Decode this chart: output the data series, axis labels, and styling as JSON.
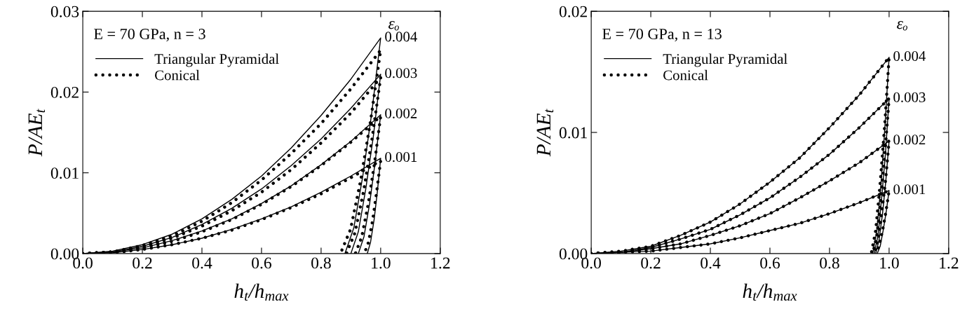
{
  "chart_data": [
    {
      "type": "line",
      "xlabel": "h$_{t}$/h$_{max}$",
      "ylabel": "P/AE$_{t}$",
      "xlim": [
        0,
        1.2
      ],
      "xticks": [
        {
          "value": 0,
          "label": "0.0"
        },
        {
          "value": 0.2,
          "label": "0.2"
        },
        {
          "value": 0.4,
          "label": "0.4"
        },
        {
          "value": 0.6,
          "label": "0.6"
        },
        {
          "value": 0.8,
          "label": "0.8"
        },
        {
          "value": 1.0,
          "label": "1.0"
        },
        {
          "value": 1.2,
          "label": "1.2"
        }
      ],
      "ylim": [
        0,
        0.03
      ],
      "yticks": [
        {
          "value": 0,
          "label": "0.00"
        },
        {
          "value": 0.01,
          "label": "0.01"
        },
        {
          "value": 0.02,
          "label": "0.02"
        },
        {
          "value": 0.03,
          "label": "0.03"
        }
      ],
      "grid": false,
      "legend": "top left",
      "marker": "none",
      "annotations": [
        "E = 70 GPa, n = 3",
        "εₒ",
        "0.004",
        "0.003",
        "0.002",
        "0.001"
      ],
      "series": [
        {
          "name": "Triangular Pyramidal",
          "color": "#000000",
          "line_style": "solid",
          "x": [
            0,
            0.1,
            0.2,
            0.3,
            0.4,
            0.5,
            0.6,
            0.7,
            0.8,
            0.9,
            1.0,
            0.97,
            0.94,
            0.91,
            0.88
          ],
          "values": [
            0,
            0.0003,
            0.0011,
            0.0024,
            0.0043,
            0.0067,
            0.0096,
            0.0131,
            0.0171,
            0.0216,
            0.0267,
            0.0174,
            0.0096,
            0.0032,
            0
          ]
        },
        {
          "color": "#000000",
          "line_style": "solid",
          "x": [
            0,
            0.1,
            0.2,
            0.3,
            0.4,
            0.5,
            0.6,
            0.7,
            0.8,
            0.9,
            1.0,
            0.975,
            0.95,
            0.925,
            0.9
          ],
          "values": [
            0,
            0.0002,
            0.0009,
            0.002,
            0.0036,
            0.0056,
            0.008,
            0.0109,
            0.0142,
            0.018,
            0.0222,
            0.0144,
            0.008,
            0.0027,
            0
          ]
        },
        {
          "color": "#000000",
          "line_style": "solid",
          "x": [
            0,
            0.1,
            0.2,
            0.3,
            0.4,
            0.5,
            0.6,
            0.7,
            0.8,
            0.9,
            1.0,
            0.981,
            0.963,
            0.944,
            0.925
          ],
          "values": [
            0,
            0.0002,
            0.0007,
            0.0016,
            0.0028,
            0.0043,
            0.0062,
            0.0084,
            0.011,
            0.0139,
            0.0172,
            0.0112,
            0.0062,
            0.0021,
            0
          ]
        },
        {
          "color": "#000000",
          "line_style": "solid",
          "x": [
            0,
            0.1,
            0.2,
            0.3,
            0.4,
            0.5,
            0.6,
            0.7,
            0.8,
            0.9,
            1.0,
            0.989,
            0.978,
            0.966,
            0.955
          ],
          "values": [
            0,
            0.0001,
            0.0005,
            0.0011,
            0.0019,
            0.003,
            0.0043,
            0.0058,
            0.0076,
            0.0096,
            0.0118,
            0.0077,
            0.0042,
            0.0014,
            0
          ]
        },
        {
          "name": "Conical",
          "color": "#000000",
          "line_style": "dotted",
          "x": [
            0,
            0.1,
            0.2,
            0.3,
            0.4,
            0.5,
            0.6,
            0.7,
            0.8,
            0.9,
            1.0,
            0.966,
            0.933,
            0.899,
            0.865
          ],
          "values": [
            0,
            0.0002,
            0.001,
            0.0022,
            0.004,
            0.0063,
            0.0091,
            0.0124,
            0.0161,
            0.0204,
            0.0252,
            0.0164,
            0.0091,
            0.003,
            0
          ]
        },
        {
          "color": "#000000",
          "line_style": "dotted",
          "x": [
            0,
            0.1,
            0.2,
            0.3,
            0.4,
            0.5,
            0.6,
            0.7,
            0.8,
            0.9,
            1.0,
            0.971,
            0.943,
            0.914,
            0.885
          ],
          "values": [
            0,
            0.0002,
            0.0008,
            0.0019,
            0.0034,
            0.0053,
            0.0076,
            0.0104,
            0.0137,
            0.0174,
            0.0218,
            0.0142,
            0.0078,
            0.0026,
            0
          ]
        },
        {
          "color": "#000000",
          "line_style": "dotted",
          "x": [
            0,
            0.1,
            0.2,
            0.3,
            0.4,
            0.5,
            0.6,
            0.7,
            0.8,
            0.9,
            1.0,
            0.979,
            0.958,
            0.936,
            0.915
          ],
          "values": [
            0,
            0.0002,
            0.0007,
            0.0015,
            0.0027,
            0.0042,
            0.0061,
            0.0083,
            0.0109,
            0.0138,
            0.017,
            0.0111,
            0.0061,
            0.002,
            0
          ]
        },
        {
          "color": "#000000",
          "line_style": "dotted",
          "x": [
            0,
            0.1,
            0.2,
            0.3,
            0.4,
            0.5,
            0.6,
            0.7,
            0.8,
            0.9,
            1.0,
            0.986,
            0.973,
            0.959,
            0.945
          ],
          "values": [
            0,
            0.0001,
            0.0005,
            0.0011,
            0.0019,
            0.0029,
            0.0042,
            0.0057,
            0.0074,
            0.0094,
            0.0115,
            0.0075,
            0.0041,
            0.0014,
            0
          ]
        }
      ]
    },
    {
      "type": "line",
      "xlabel": "h$_{t}$/h$_{max}$",
      "ylabel": "P/AE$_{t}$",
      "xlim": [
        0,
        1.2
      ],
      "xticks": [
        {
          "value": 0,
          "label": "0.0"
        },
        {
          "value": 0.2,
          "label": "0.2"
        },
        {
          "value": 0.4,
          "label": "0.4"
        },
        {
          "value": 0.6,
          "label": "0.6"
        },
        {
          "value": 0.8,
          "label": "0.8"
        },
        {
          "value": 1.0,
          "label": "1.0"
        },
        {
          "value": 1.2,
          "label": "1.2"
        }
      ],
      "ylim": [
        0,
        0.02
      ],
      "yticks": [
        {
          "value": 0,
          "label": "0.00"
        },
        {
          "value": 0.01,
          "label": "0.01"
        },
        {
          "value": 0.02,
          "label": "0.02"
        }
      ],
      "grid": false,
      "legend": "top left",
      "marker": "none",
      "annotations": [
        "E = 70 GPa, n = 13",
        "εₒ",
        "0.004",
        "0.003",
        "0.002",
        "0.001"
      ],
      "series": [
        {
          "name": "Triangular Pyramidal",
          "color": "#000000",
          "line_style": "solid",
          "x": [
            0,
            0.1,
            0.2,
            0.3,
            0.4,
            0.5,
            0.6,
            0.7,
            0.8,
            0.9,
            1.0,
            0.986,
            0.973,
            0.959,
            0.945
          ],
          "values": [
            0,
            0.0002,
            0.0006,
            0.0015,
            0.0026,
            0.0041,
            0.0059,
            0.0079,
            0.0104,
            0.0131,
            0.0162,
            0.0105,
            0.0058,
            0.0019,
            0
          ]
        },
        {
          "color": "#000000",
          "line_style": "solid",
          "x": [
            0,
            0.1,
            0.2,
            0.3,
            0.4,
            0.5,
            0.6,
            0.7,
            0.8,
            0.9,
            1.0,
            0.988,
            0.975,
            0.963,
            0.95
          ],
          "values": [
            0,
            0.0001,
            0.0005,
            0.0012,
            0.002,
            0.0032,
            0.0046,
            0.0063,
            0.0082,
            0.0104,
            0.0128,
            0.0083,
            0.0046,
            0.0015,
            0
          ]
        },
        {
          "color": "#000000",
          "line_style": "solid",
          "x": [
            0,
            0.1,
            0.2,
            0.3,
            0.4,
            0.5,
            0.6,
            0.7,
            0.8,
            0.9,
            1.0,
            0.989,
            0.978,
            0.966,
            0.955
          ],
          "values": [
            0,
            0.0001,
            0.0004,
            0.0008,
            0.0015,
            0.0023,
            0.0033,
            0.0046,
            0.006,
            0.0075,
            0.0093,
            0.006,
            0.0033,
            0.0011,
            0
          ]
        },
        {
          "color": "#000000",
          "line_style": "solid",
          "x": [
            0,
            0.1,
            0.2,
            0.3,
            0.4,
            0.5,
            0.6,
            0.7,
            0.8,
            0.9,
            1.0,
            0.99,
            0.98,
            0.97,
            0.96
          ],
          "values": [
            0,
            0.0001,
            0.0002,
            0.0005,
            0.0008,
            0.0013,
            0.0019,
            0.0025,
            0.0033,
            0.0042,
            0.0052,
            0.0034,
            0.0019,
            0.0006,
            0
          ]
        },
        {
          "name": "Conical",
          "color": "#000000",
          "line_style": "dotted",
          "x": [
            0,
            0.1,
            0.2,
            0.3,
            0.4,
            0.5,
            0.6,
            0.7,
            0.8,
            0.9,
            1.0,
            0.985,
            0.97,
            0.955,
            0.94
          ],
          "values": [
            0,
            0.0002,
            0.0006,
            0.0015,
            0.0026,
            0.0041,
            0.0059,
            0.0079,
            0.0104,
            0.0131,
            0.0162,
            0.0105,
            0.0058,
            0.0019,
            0
          ]
        },
        {
          "color": "#000000",
          "line_style": "dotted",
          "x": [
            0,
            0.1,
            0.2,
            0.3,
            0.4,
            0.5,
            0.6,
            0.7,
            0.8,
            0.9,
            1.0,
            0.986,
            0.973,
            0.959,
            0.945
          ],
          "values": [
            0,
            0.0001,
            0.0005,
            0.0012,
            0.002,
            0.0032,
            0.0046,
            0.0063,
            0.0082,
            0.0104,
            0.0128,
            0.0083,
            0.0046,
            0.0015,
            0
          ]
        },
        {
          "color": "#000000",
          "line_style": "dotted",
          "x": [
            0,
            0.1,
            0.2,
            0.3,
            0.4,
            0.5,
            0.6,
            0.7,
            0.8,
            0.9,
            1.0,
            0.988,
            0.975,
            0.963,
            0.95
          ],
          "values": [
            0,
            0.0001,
            0.0004,
            0.0008,
            0.0015,
            0.0023,
            0.0033,
            0.0046,
            0.006,
            0.0075,
            0.0093,
            0.006,
            0.0033,
            0.0011,
            0
          ]
        },
        {
          "color": "#000000",
          "line_style": "dotted",
          "x": [
            0,
            0.1,
            0.2,
            0.3,
            0.4,
            0.5,
            0.6,
            0.7,
            0.8,
            0.9,
            1.0,
            0.989,
            0.978,
            0.966,
            0.955
          ],
          "values": [
            0,
            0.0001,
            0.0002,
            0.0005,
            0.0008,
            0.0013,
            0.0019,
            0.0025,
            0.0033,
            0.0042,
            0.0052,
            0.0034,
            0.0019,
            0.0006,
            0
          ]
        }
      ]
    }
  ]
}
